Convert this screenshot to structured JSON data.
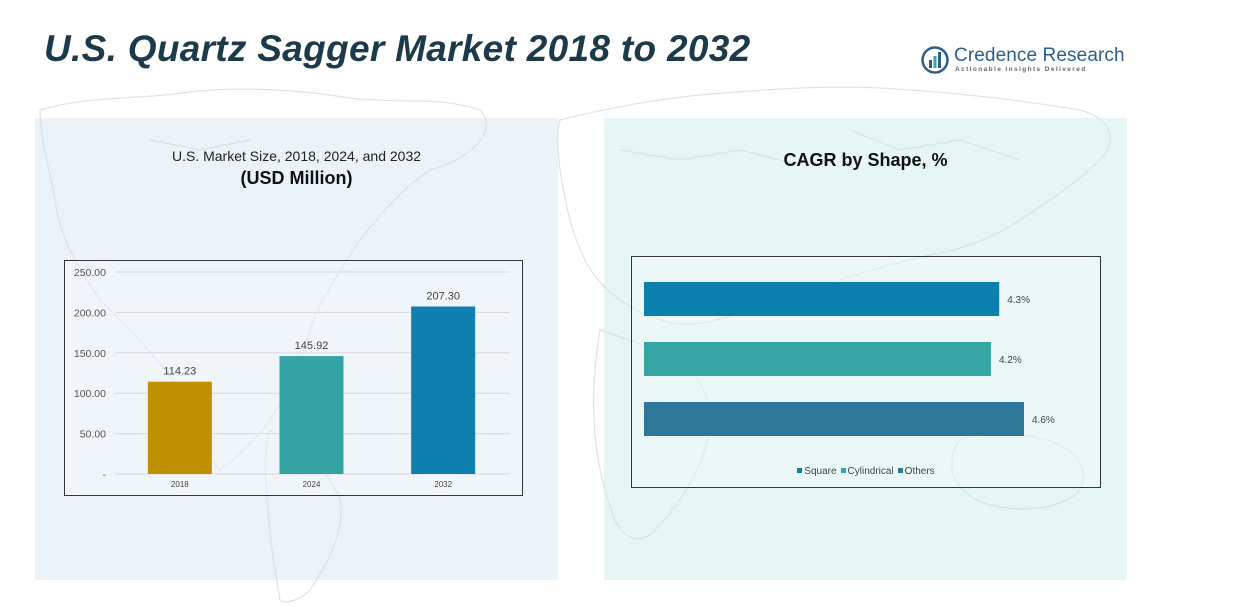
{
  "page": {
    "title": "U.S. Quartz Sagger Market 2018 to 2032"
  },
  "logo": {
    "name": "Credence Research",
    "tagline": "Actionable Insights Delivered"
  },
  "left_panel": {
    "subtitle": "U.S. Market Size, 2018, 2024, and 2032",
    "unit": "(USD Million)"
  },
  "right_panel": {
    "title": "CAGR by Shape, %"
  },
  "colors": {
    "bar_2018": "#c09000",
    "bar_2024": "#33a3a3",
    "bar_2032": "#0f7fb0",
    "square": "#0b7fad",
    "cylindrical": "#35a6a3",
    "others": "#2d7898",
    "title": "#1c3a4a",
    "logo": "#2b5f8a"
  },
  "chart_data": [
    {
      "type": "bar",
      "categories": [
        "2018",
        "2024",
        "2032"
      ],
      "values": [
        114.23,
        145.92,
        207.3
      ],
      "value_labels": [
        "114.23",
        "145.92",
        "207.30"
      ],
      "ylim": [
        0,
        250
      ],
      "yticks": [
        0,
        50,
        100,
        150,
        200,
        250
      ],
      "ytick_labels": [
        "-",
        "50.00",
        "100.00",
        "150.00",
        "200.00",
        "250.00"
      ],
      "grid": true,
      "colors": [
        "#c09000",
        "#33a3a3",
        "#0f7fb0"
      ]
    },
    {
      "type": "bar",
      "orientation": "horizontal",
      "categories": [
        "Square",
        "Cylindrical",
        "Others"
      ],
      "values": [
        4.3,
        4.2,
        4.6
      ],
      "value_labels": [
        "4.3%",
        "4.2%",
        "4.6%"
      ],
      "legend": [
        "Square",
        "Cylindrical",
        "Others"
      ],
      "legend_position": "bottom",
      "colors": [
        "#0b7fad",
        "#35a6a3",
        "#2d7898"
      ]
    }
  ]
}
